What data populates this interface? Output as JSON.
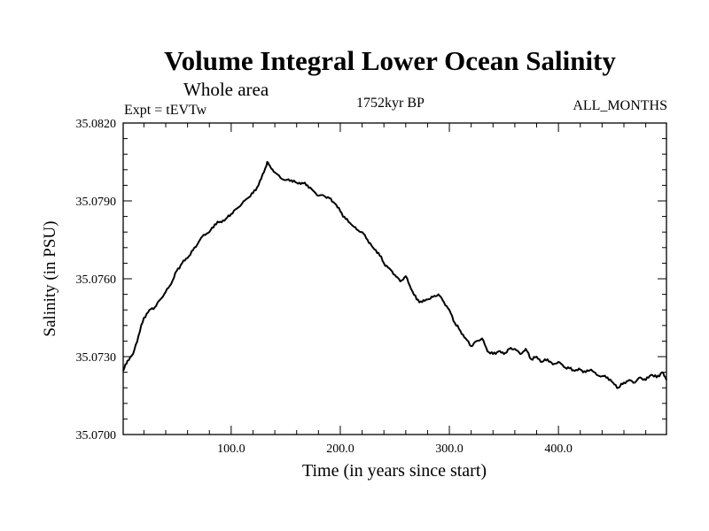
{
  "header": {
    "title": "Volume Integral Lower Ocean Salinity",
    "subtitle": "Whole area",
    "expt": "Expt = tEVTw",
    "period": "1752kyr BP",
    "months": "ALL_MONTHS"
  },
  "chart_data": {
    "type": "line",
    "title": "Volume Integral Lower Ocean Salinity",
    "xlabel": "Time (in years since start)",
    "ylabel": "Salinity (in PSU)",
    "xlim": [
      1,
      499
    ],
    "ylim": [
      35.07,
      35.082
    ],
    "x_ticks": [
      100,
      200,
      300,
      400
    ],
    "x_tick_labels": [
      "100.0",
      "200.0",
      "300.0",
      "400.0"
    ],
    "y_ticks": [
      35.07,
      35.073,
      35.076,
      35.079,
      35.082
    ],
    "y_tick_labels": [
      "35.0700",
      "35.0730",
      "35.0760",
      "35.0790",
      "35.0820"
    ],
    "series": [
      {
        "name": "Salinity",
        "x": [
          1,
          5,
          10,
          15,
          20,
          25,
          30,
          35,
          40,
          45,
          50,
          55,
          60,
          65,
          70,
          75,
          80,
          85,
          90,
          95,
          100,
          105,
          110,
          115,
          120,
          125,
          130,
          133,
          136,
          140,
          145,
          150,
          155,
          160,
          165,
          170,
          175,
          180,
          185,
          190,
          195,
          200,
          205,
          210,
          215,
          220,
          225,
          230,
          235,
          240,
          245,
          250,
          255,
          260,
          265,
          270,
          275,
          280,
          285,
          290,
          295,
          300,
          305,
          310,
          315,
          320,
          325,
          330,
          335,
          340,
          345,
          350,
          355,
          360,
          365,
          370,
          375,
          380,
          385,
          390,
          395,
          400,
          405,
          410,
          415,
          420,
          425,
          430,
          435,
          440,
          445,
          450,
          455,
          460,
          465,
          470,
          475,
          480,
          485,
          490,
          495,
          499
        ],
        "values": [
          35.07245,
          35.07285,
          35.0731,
          35.0738,
          35.0745,
          35.0748,
          35.0749,
          35.0752,
          35.0755,
          35.0758,
          35.0763,
          35.0766,
          35.0768,
          35.0771,
          35.0774,
          35.0777,
          35.0778,
          35.0781,
          35.0782,
          35.0783,
          35.0785,
          35.0787,
          35.0789,
          35.0791,
          35.0793,
          35.0796,
          35.0801,
          35.0805,
          35.0803,
          35.0801,
          35.0799,
          35.0798,
          35.0798,
          35.0797,
          35.0797,
          35.0796,
          35.0794,
          35.0792,
          35.0792,
          35.0791,
          35.0789,
          35.0786,
          35.0783,
          35.0781,
          35.0779,
          35.0778,
          35.0775,
          35.0772,
          35.077,
          35.0766,
          35.0764,
          35.07615,
          35.0759,
          35.0761,
          35.0756,
          35.0752,
          35.0751,
          35.0752,
          35.0753,
          35.0754,
          35.0751,
          35.0748,
          35.0743,
          35.074,
          35.0737,
          35.0734,
          35.0736,
          35.0737,
          35.0732,
          35.0731,
          35.0732,
          35.0731,
          35.0733,
          35.0733,
          35.0731,
          35.0733,
          35.0729,
          35.073,
          35.0728,
          35.0729,
          35.0727,
          35.0728,
          35.0726,
          35.07255,
          35.07245,
          35.0725,
          35.0724,
          35.0725,
          35.0723,
          35.07225,
          35.0722,
          35.072,
          35.0718,
          35.072,
          35.0721,
          35.072,
          35.0722,
          35.0721,
          35.0723,
          35.0722,
          35.0724,
          35.0721
        ]
      }
    ]
  }
}
